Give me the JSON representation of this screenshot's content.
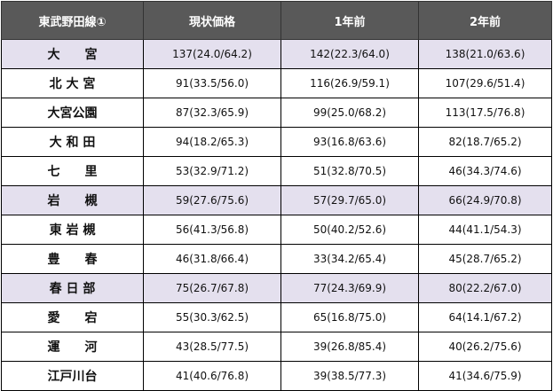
{
  "table": {
    "headers": [
      "東武野田線①",
      "現状価格",
      "1年前",
      "2年前"
    ],
    "rows": [
      {
        "station": "大　　宮",
        "highlight": true,
        "current": "137(24.0/64.2)",
        "one_year": "142(22.3/64.0)",
        "two_year": "138(21.0/63.6)"
      },
      {
        "station": "北 大 宮",
        "highlight": false,
        "current": "91(33.5/56.0)",
        "one_year": "116(26.9/59.1)",
        "two_year": "107(29.6/51.4)"
      },
      {
        "station": "大宮公園",
        "highlight": false,
        "current": "87(32.3/65.9)",
        "one_year": "99(25.0/68.2)",
        "two_year": "113(17.5/76.8)"
      },
      {
        "station": "大 和 田",
        "highlight": false,
        "current": "94(18.2/65.3)",
        "one_year": "93(16.8/63.6)",
        "two_year": "82(18.7/65.2)"
      },
      {
        "station": "七　　里",
        "highlight": false,
        "current": "53(32.9/71.2)",
        "one_year": "51(32.8/70.5)",
        "two_year": "46(34.3/74.6)"
      },
      {
        "station": "岩　　槻",
        "highlight": true,
        "current": "59(27.6/75.6)",
        "one_year": "57(29.7/65.0)",
        "two_year": "66(24.9/70.8)"
      },
      {
        "station": "東 岩 槻",
        "highlight": false,
        "current": "56(41.3/56.8)",
        "one_year": "50(40.2/52.6)",
        "two_year": "44(41.1/54.3)"
      },
      {
        "station": "豊　　春",
        "highlight": false,
        "current": "46(31.8/66.4)",
        "one_year": "33(34.2/65.4)",
        "two_year": "45(28.7/65.2)"
      },
      {
        "station": "春 日 部",
        "highlight": true,
        "current": "75(26.7/67.8)",
        "one_year": "77(24.3/69.9)",
        "two_year": "80(22.2/67.0)"
      },
      {
        "station": "愛　　宕",
        "highlight": false,
        "current": "55(30.3/62.5)",
        "one_year": "65(16.8/75.0)",
        "two_year": "64(14.1/67.2)"
      },
      {
        "station": "運　　河",
        "highlight": false,
        "current": "43(28.5/77.5)",
        "one_year": "39(26.8/85.4)",
        "two_year": "40(26.2/75.6)"
      },
      {
        "station": "江戸川台",
        "highlight": false,
        "current": "41(40.6/76.8)",
        "one_year": "39(38.5/77.3)",
        "two_year": "41(34.6/75.9)"
      }
    ],
    "colors": {
      "header_bg": "#595959",
      "header_text": "#ffffff",
      "highlight_bg": "#e4e0ee"
    }
  }
}
